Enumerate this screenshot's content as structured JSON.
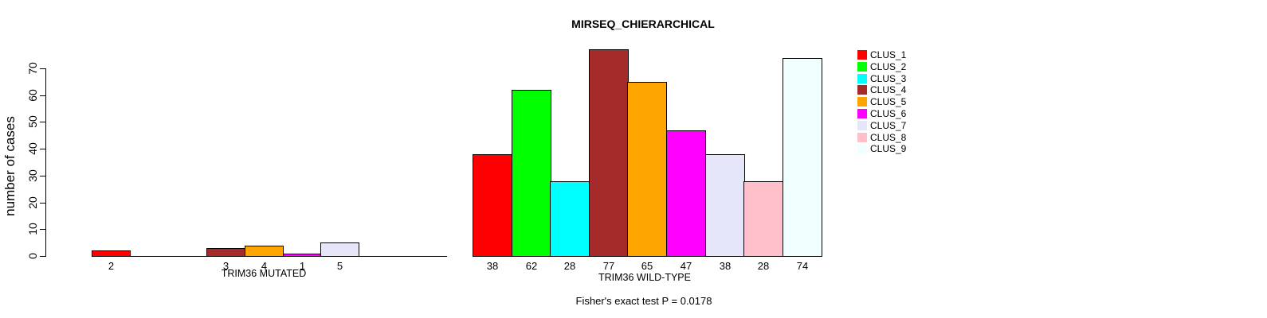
{
  "chart_data": {
    "type": "bar",
    "title": "MIRSEQ_CHIERARCHICAL",
    "ylabel": "number of cases",
    "ylim": [
      0,
      70
    ],
    "yticks": [
      0,
      10,
      20,
      30,
      40,
      50,
      60,
      70
    ],
    "grid": false,
    "legend_position": "right-top",
    "axis_color": "#000000",
    "background_color": "#FFFFFF",
    "clusters": [
      {
        "name": "CLUS_1",
        "color": "#FF0000"
      },
      {
        "name": "CLUS_2",
        "color": "#00FF00"
      },
      {
        "name": "CLUS_3",
        "color": "#00FFFF"
      },
      {
        "name": "CLUS_4",
        "color": "#A52A2A"
      },
      {
        "name": "CLUS_5",
        "color": "#FFA500"
      },
      {
        "name": "CLUS_6",
        "color": "#FF00FF"
      },
      {
        "name": "CLUS_7",
        "color": "#E6E6FA"
      },
      {
        "name": "CLUS_8",
        "color": "#FFC0CB"
      },
      {
        "name": "CLUS_9",
        "color": "#F0FFFF"
      }
    ],
    "groups": [
      {
        "label": "TRIM36 MUTATED",
        "values": [
          2,
          0,
          0,
          3,
          4,
          1,
          5,
          0,
          0
        ]
      },
      {
        "label": "TRIM36 WILD-TYPE",
        "values": [
          38,
          62,
          28,
          77,
          65,
          47,
          38,
          28,
          74
        ]
      }
    ],
    "annotation": "Fisher's exact test P = 0.0178"
  }
}
